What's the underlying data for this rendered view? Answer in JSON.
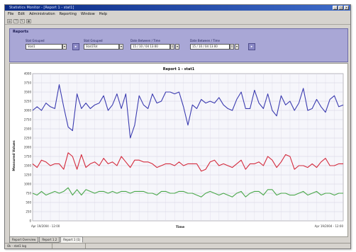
{
  "window": {
    "title": "Statistics Monitor - [Report 1 - stat1]"
  },
  "menu": [
    "File",
    "Edit",
    "Administration",
    "Reporting",
    "Window",
    "Help"
  ],
  "toolbar": {
    "buttons": [
      "print-icon",
      "copy-icon",
      "refresh-icon",
      "report-icon"
    ]
  },
  "reports_panel": {
    "title": "Reports",
    "fields": [
      {
        "label": "Stat Grouped",
        "value": "Stat1"
      },
      {
        "label": "Stat Grouped",
        "value": "Stat1Tot"
      },
      {
        "label": "Date Between / Time",
        "value": "15 / 10 / 04 13:00"
      },
      {
        "label": "Date Between / Time",
        "value": "15 / 10 / 04 13:00"
      }
    ]
  },
  "chart_data": {
    "type": "line",
    "title": "Report 1 - stat1",
    "xlabel": "Time",
    "ylabel": "Measured Values",
    "ylim": [
      0,
      4000
    ],
    "yticks": [
      0,
      250,
      500,
      750,
      1000,
      1250,
      1500,
      1750,
      2000,
      2250,
      2500,
      2750,
      3000,
      3250,
      3500,
      3750,
      4000
    ],
    "x_start_label": "Apr 19/2004 - 12:00",
    "x_end_label": "Apr 19/2004 - 12:00",
    "series": [
      {
        "color": "#3b3bb0",
        "values": [
          3000,
          3100,
          3000,
          3200,
          3100,
          3050,
          3700,
          3100,
          2550,
          2450,
          3450,
          3050,
          3200,
          3050,
          3150,
          3200,
          3400,
          3000,
          3150,
          3450,
          3050,
          3450,
          2250,
          2600,
          3400,
          3150,
          3050,
          3450,
          3200,
          3250,
          3500,
          3500,
          3450,
          3500,
          3100,
          2600,
          3150,
          3050,
          3300,
          3200,
          3250,
          3200,
          3350,
          3150,
          3050,
          3000,
          3300,
          3500,
          3050,
          3050,
          3550,
          3200,
          3050,
          3450,
          3000,
          2850,
          3400,
          3150,
          3250,
          3000,
          3200,
          3600,
          3000,
          3050,
          3300,
          3100,
          2950,
          3300,
          3400,
          3100,
          3150
        ]
      },
      {
        "color": "#d42a3c",
        "values": [
          1550,
          1450,
          1650,
          1600,
          1500,
          1550,
          1550,
          1400,
          1850,
          1750,
          1400,
          1800,
          1450,
          1550,
          1600,
          1500,
          1700,
          1550,
          1600,
          1500,
          1750,
          1600,
          1450,
          1650,
          1650,
          1600,
          1600,
          1550,
          1450,
          1500,
          1550,
          1550,
          1500,
          1600,
          1500,
          1550,
          1550,
          1550,
          1350,
          1400,
          1600,
          1650,
          1500,
          1550,
          1500,
          1450,
          1550,
          1650,
          1400,
          1550,
          1550,
          1600,
          1500,
          1750,
          1650,
          1450,
          1600,
          1800,
          1750,
          1400,
          1500,
          1500,
          1450,
          1550,
          1450,
          1600,
          1700,
          1500,
          1500,
          1550,
          1550
        ]
      },
      {
        "color": "#4aa84a",
        "values": [
          750,
          700,
          800,
          700,
          750,
          800,
          750,
          800,
          900,
          700,
          850,
          700,
          850,
          800,
          750,
          800,
          800,
          750,
          800,
          750,
          800,
          800,
          750,
          800,
          800,
          800,
          750,
          750,
          700,
          800,
          800,
          750,
          750,
          800,
          800,
          750,
          750,
          700,
          650,
          750,
          800,
          750,
          700,
          750,
          700,
          650,
          750,
          800,
          650,
          750,
          800,
          800,
          700,
          850,
          850,
          700,
          750,
          750,
          700,
          700,
          750,
          800,
          700,
          750,
          800,
          700,
          750,
          750,
          700,
          750,
          750
        ]
      }
    ]
  },
  "tabs": [
    "Report Overview",
    "Report 1.2",
    "Report 1 (1)"
  ],
  "active_tab": 2,
  "status": {
    "left": "Ok - stat1 log",
    "right": ""
  },
  "colors": {
    "panel": "#a9a7d6",
    "titlebar": "#0b2a84"
  }
}
